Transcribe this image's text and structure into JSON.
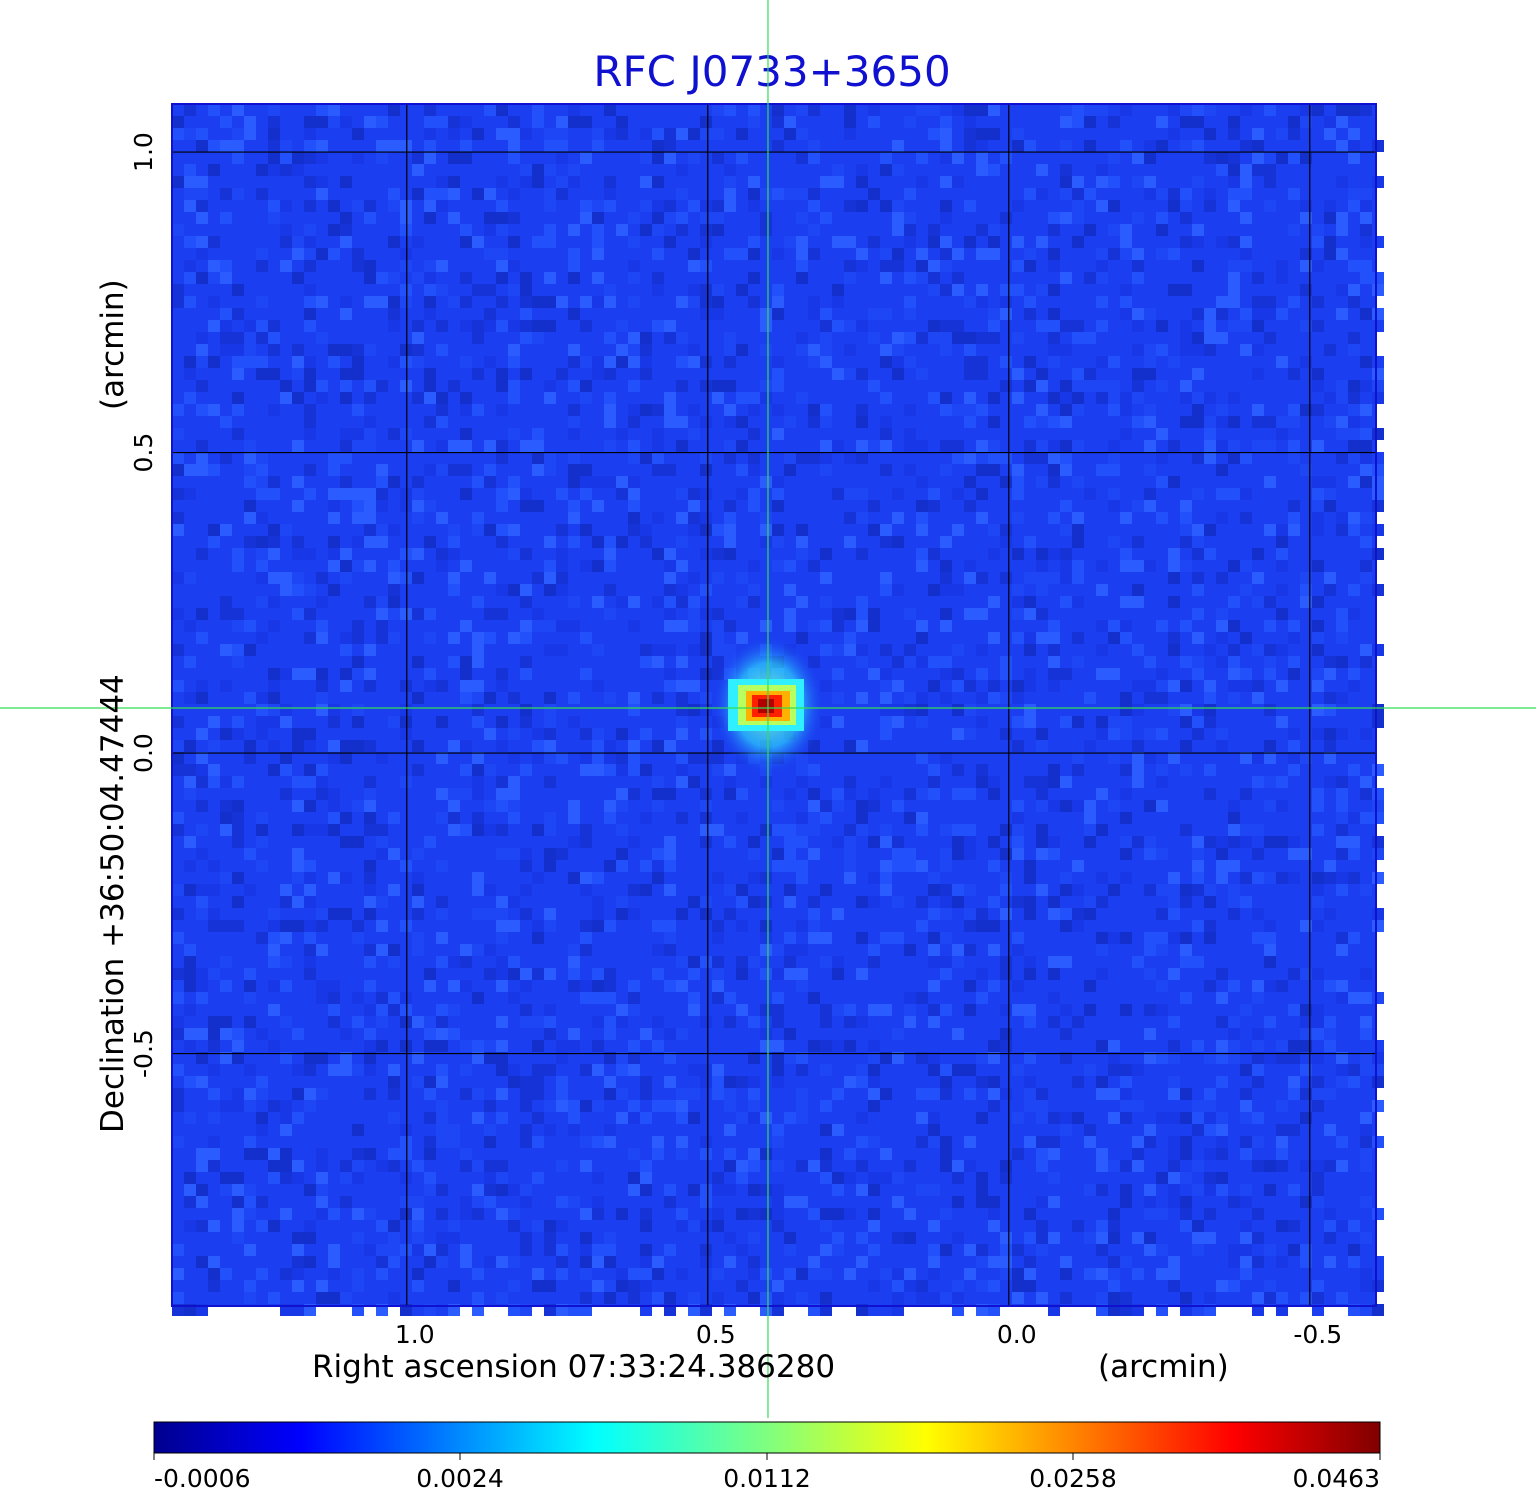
{
  "title": "RFC J0733+3650",
  "x_axis": {
    "label": "Right ascension  07:33:24.386280",
    "unit": "(arcmin)",
    "ticks": [
      "1.0",
      "0.5",
      "0.0",
      "-0.5"
    ],
    "tick_values": [
      1.0,
      0.5,
      0.0,
      -0.5
    ],
    "range": [
      1.39,
      -0.61
    ]
  },
  "y_axis": {
    "label": "Declination  +36:50:04.47444",
    "unit": "(arcmin)",
    "ticks": [
      "1.0",
      "0.5",
      "0.0",
      "-0.5"
    ],
    "tick_values": [
      1.0,
      0.5,
      0.0,
      -0.5
    ],
    "range": [
      -0.92,
      1.08
    ]
  },
  "source": {
    "x_arcmin": 0.4,
    "y_arcmin": 0.08,
    "peak": 0.0463
  },
  "crosshair": {
    "x_arcmin": 0.4,
    "y_arcmin": 0.075,
    "color": "#33dd55"
  },
  "grid": true,
  "colorbar": {
    "colormap": "jet",
    "tick_labels": [
      "-0.0006",
      "0.0024",
      "0.0112",
      "0.0258",
      "0.0463"
    ],
    "tick_values": [
      -0.0006,
      0.0024,
      0.0112,
      0.0258,
      0.0463
    ]
  },
  "colors": {
    "title": "#1010d0",
    "background_field": "#1a3ef0",
    "crosshair": "#33dd55"
  }
}
